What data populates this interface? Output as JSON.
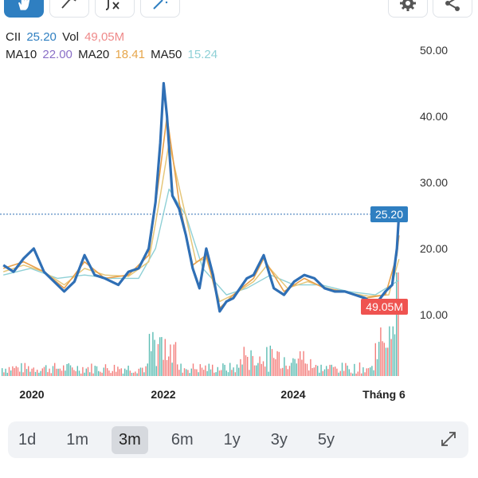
{
  "toolbar": {
    "buttons": [
      {
        "icon": "hand-cursor-icon",
        "active": true
      },
      {
        "icon": "draw-line-icon",
        "active": false
      },
      {
        "icon": "indicator-fx-icon",
        "active": false
      },
      {
        "icon": "magic-wand-icon",
        "active": false
      }
    ],
    "settings_icon": "gear-icon",
    "share_icon": "share-icon"
  },
  "legend": {
    "symbol": "CII",
    "price": "25.20",
    "vol_label": "Vol",
    "vol_value": "49,05M",
    "ma10_label": "MA10",
    "ma10_value": "22.00",
    "ma20_label": "MA20",
    "ma20_value": "18.41",
    "ma50_label": "MA50",
    "ma50_value": "15.24"
  },
  "price_tag": "25.20",
  "volume_tag": "49.05M",
  "colors": {
    "price_line": "#2f6fb5",
    "ma10": "#e8a04a",
    "ma20": "#e6c77a",
    "ma50": "#8fd0d6",
    "price_tag": "#2f7fc1",
    "volume_tag": "#ef5350",
    "vol_up": "#26a69a",
    "vol_down": "#ef5350"
  },
  "chart_data": {
    "type": "line",
    "title": "",
    "xlabel": "",
    "ylabel": "",
    "ylim": [
      8,
      52
    ],
    "y_ticks": [
      "50.00",
      "40.00",
      "30.00",
      "20.00",
      "10.00"
    ],
    "x_ticks": [
      "2020",
      "2022",
      "2024",
      "Tháng 6"
    ],
    "series": [
      {
        "name": "CII",
        "values": [
          [
            2019.6,
            17.5
          ],
          [
            2019.75,
            16.5
          ],
          [
            2019.9,
            18.5
          ],
          [
            2020.05,
            20
          ],
          [
            2020.2,
            16.5
          ],
          [
            2020.35,
            15
          ],
          [
            2020.5,
            13.5
          ],
          [
            2020.65,
            15
          ],
          [
            2020.8,
            19
          ],
          [
            2020.95,
            16
          ],
          [
            2021.1,
            15.5
          ],
          [
            2021.3,
            14.5
          ],
          [
            2021.45,
            16.5
          ],
          [
            2021.6,
            17
          ],
          [
            2021.75,
            20
          ],
          [
            2021.85,
            27
          ],
          [
            2021.92,
            36
          ],
          [
            2021.97,
            45
          ],
          [
            2022.02,
            40
          ],
          [
            2022.1,
            28
          ],
          [
            2022.2,
            26
          ],
          [
            2022.3,
            22
          ],
          [
            2022.4,
            17
          ],
          [
            2022.5,
            14
          ],
          [
            2022.6,
            20
          ],
          [
            2022.7,
            16
          ],
          [
            2022.8,
            10.5
          ],
          [
            2022.9,
            12
          ],
          [
            2023.0,
            12.5
          ],
          [
            2023.1,
            14
          ],
          [
            2023.2,
            15.5
          ],
          [
            2023.3,
            16
          ],
          [
            2023.45,
            19
          ],
          [
            2023.6,
            14
          ],
          [
            2023.75,
            13
          ],
          [
            2023.9,
            15
          ],
          [
            2024.05,
            16
          ],
          [
            2024.2,
            15.5
          ],
          [
            2024.35,
            14
          ],
          [
            2024.5,
            13.5
          ],
          [
            2024.65,
            13.5
          ],
          [
            2024.8,
            13
          ],
          [
            2024.95,
            12.5
          ],
          [
            2025.1,
            11.5
          ],
          [
            2025.25,
            13.5
          ],
          [
            2025.35,
            14.5
          ],
          [
            2025.42,
            20
          ],
          [
            2025.45,
            25.2
          ]
        ]
      },
      {
        "name": "MA10",
        "values": [
          [
            2019.6,
            17
          ],
          [
            2019.9,
            18
          ],
          [
            2020.2,
            16.5
          ],
          [
            2020.5,
            14
          ],
          [
            2020.8,
            18
          ],
          [
            2021.1,
            15.5
          ],
          [
            2021.45,
            16
          ],
          [
            2021.75,
            19
          ],
          [
            2021.92,
            32
          ],
          [
            2022.02,
            40
          ],
          [
            2022.2,
            27
          ],
          [
            2022.4,
            17.5
          ],
          [
            2022.6,
            19
          ],
          [
            2022.8,
            11
          ],
          [
            2023.0,
            13
          ],
          [
            2023.3,
            15.5
          ],
          [
            2023.45,
            18.5
          ],
          [
            2023.75,
            13.5
          ],
          [
            2024.05,
            15.5
          ],
          [
            2024.35,
            14
          ],
          [
            2024.65,
            13.5
          ],
          [
            2024.95,
            12.5
          ],
          [
            2025.25,
            13
          ],
          [
            2025.42,
            19
          ],
          [
            2025.45,
            22
          ]
        ]
      },
      {
        "name": "MA20",
        "values": [
          [
            2019.6,
            16.5
          ],
          [
            2019.9,
            17.5
          ],
          [
            2020.2,
            16.5
          ],
          [
            2020.5,
            14.5
          ],
          [
            2020.8,
            17
          ],
          [
            2021.1,
            16
          ],
          [
            2021.45,
            15.8
          ],
          [
            2021.75,
            18
          ],
          [
            2021.92,
            28
          ],
          [
            2022.05,
            36
          ],
          [
            2022.25,
            27
          ],
          [
            2022.45,
            18
          ],
          [
            2022.6,
            18.5
          ],
          [
            2022.8,
            12
          ],
          [
            2023.0,
            13
          ],
          [
            2023.3,
            15
          ],
          [
            2023.5,
            17.5
          ],
          [
            2023.8,
            14
          ],
          [
            2024.1,
            15
          ],
          [
            2024.4,
            14
          ],
          [
            2024.7,
            13.3
          ],
          [
            2025.0,
            12.8
          ],
          [
            2025.3,
            13
          ],
          [
            2025.45,
            18.4
          ]
        ]
      },
      {
        "name": "MA50",
        "values": [
          [
            2019.6,
            16
          ],
          [
            2020.0,
            17
          ],
          [
            2020.4,
            15.5
          ],
          [
            2020.8,
            16
          ],
          [
            2021.2,
            15.5
          ],
          [
            2021.6,
            15.5
          ],
          [
            2021.85,
            20
          ],
          [
            2022.05,
            29
          ],
          [
            2022.3,
            25
          ],
          [
            2022.55,
            17
          ],
          [
            2022.9,
            13
          ],
          [
            2023.2,
            14
          ],
          [
            2023.55,
            16
          ],
          [
            2023.9,
            14.5
          ],
          [
            2024.3,
            14.5
          ],
          [
            2024.7,
            13.5
          ],
          [
            2025.1,
            13
          ],
          [
            2025.45,
            15.2
          ]
        ]
      }
    ],
    "volume_note": "volume histogram, last bar 49.05M"
  }
}
